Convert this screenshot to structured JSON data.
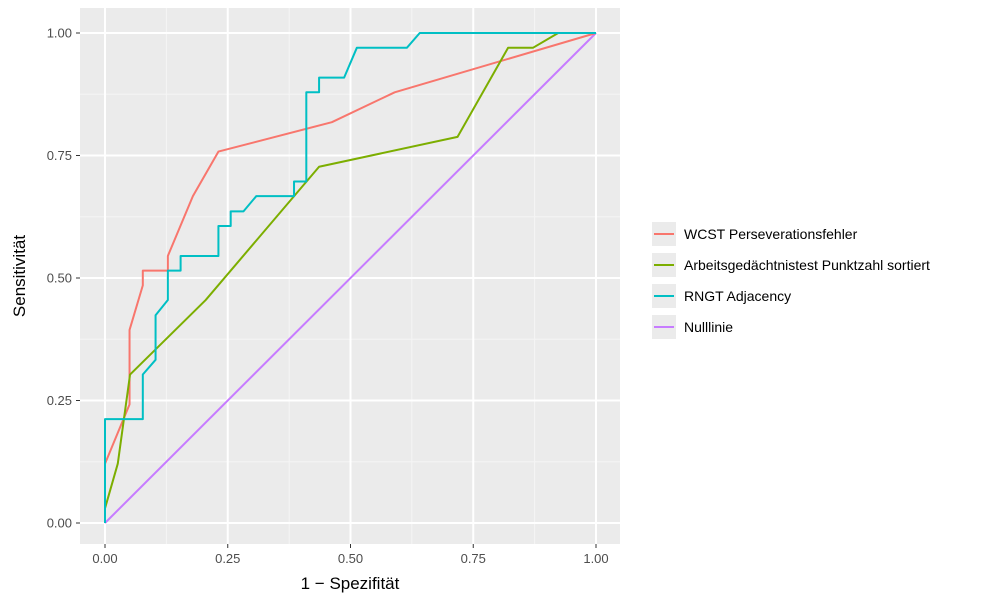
{
  "chart_data": {
    "type": "line",
    "title": "",
    "xlabel": "1 − Spezifität",
    "ylabel": "Sensitivität",
    "xlim": [
      0,
      1
    ],
    "ylim": [
      0,
      1
    ],
    "x_ticks": [
      "0.00",
      "0.25",
      "0.50",
      "0.75",
      "1.00"
    ],
    "y_ticks": [
      "0.00",
      "0.25",
      "0.50",
      "0.75",
      "1.00"
    ],
    "grid": true,
    "background": "#ebebeb",
    "legend_position": "right",
    "series": [
      {
        "name": "WCST Perseverationsfehler",
        "color": "#f8766d",
        "x": [
          0,
          0,
          0.05,
          0.05,
          0.077,
          0.077,
          0.128,
          0.128,
          0.179,
          0.231,
          0.462,
          0.59,
          1.0
        ],
        "y": [
          0,
          0.121,
          0.242,
          0.394,
          0.485,
          0.515,
          0.515,
          0.545,
          0.667,
          0.758,
          0.818,
          0.879,
          1.0
        ]
      },
      {
        "name": "Arbeitsgedächtnistest Punktzahl sortiert",
        "color": "#7cae00",
        "x": [
          0,
          0,
          0.026,
          0.051,
          0.205,
          0.436,
          0.718,
          0.821,
          0.872,
          0.923,
          1.0
        ],
        "y": [
          0,
          0.03,
          0.121,
          0.303,
          0.455,
          0.727,
          0.788,
          0.97,
          0.97,
          1.0,
          1.0
        ]
      },
      {
        "name": "RNGT Adjacency",
        "color": "#00bfc4",
        "x": [
          0,
          0,
          0.077,
          0.077,
          0.103,
          0.103,
          0.128,
          0.128,
          0.154,
          0.154,
          0.231,
          0.231,
          0.256,
          0.256,
          0.282,
          0.308,
          0.385,
          0.385,
          0.41,
          0.41,
          0.436,
          0.436,
          0.487,
          0.513,
          0.615,
          0.641,
          1.0
        ],
        "y": [
          0,
          0.212,
          0.212,
          0.303,
          0.333,
          0.424,
          0.455,
          0.515,
          0.515,
          0.545,
          0.545,
          0.606,
          0.606,
          0.636,
          0.636,
          0.667,
          0.667,
          0.697,
          0.697,
          0.879,
          0.879,
          0.909,
          0.909,
          0.97,
          0.97,
          1.0,
          1.0
        ]
      },
      {
        "name": "Nulllinie",
        "color": "#c77cff",
        "x": [
          0,
          1
        ],
        "y": [
          0,
          1
        ]
      }
    ]
  }
}
